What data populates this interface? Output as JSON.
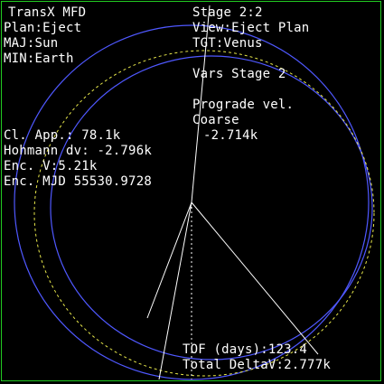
{
  "colors": {
    "frame": "#22cc22",
    "text": "#ffffff",
    "orbit": "#4f58ff",
    "target_orbit": "#e6e64a",
    "vectors": "#ffffff"
  },
  "header": {
    "title": "TransX MFD",
    "stage": "Stage 2:2"
  },
  "left_panel": {
    "plan": "Plan:Eject",
    "maj": "MAJ:Sun",
    "min": "MIN:Earth"
  },
  "right_panel": {
    "view": "View:Eject Plan",
    "tgt": "TGT:Venus",
    "vars_stage": "Vars Stage 2",
    "param_name": "Prograde vel.",
    "param_mode": "Coarse",
    "param_value": "-2.714k"
  },
  "readouts": {
    "closest_approach": "Cl. App.: 78.1k",
    "hohmann_dv": "Hohmann dv: -2.796k",
    "enc_v": "Enc. V:5.21k",
    "enc_mjd": "Enc. MJD 55530.9728"
  },
  "footer": {
    "tof": "TOF (days):123.4",
    "total_dv": "Total DeltaV:2.777k"
  }
}
